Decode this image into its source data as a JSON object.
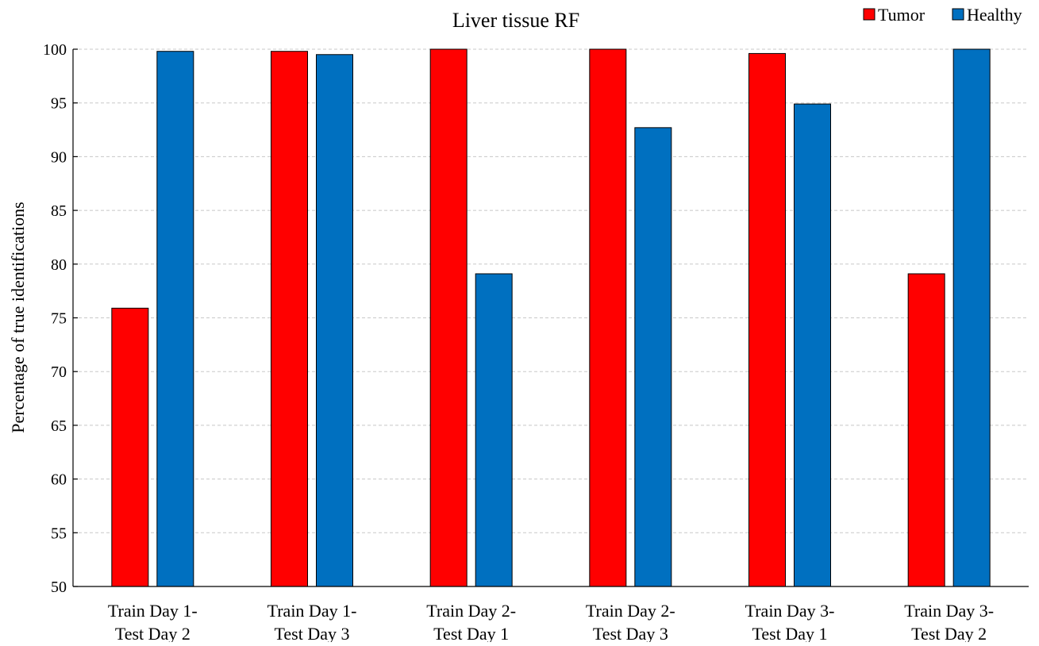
{
  "chart_data": {
    "type": "bar",
    "title": "Liver tissue RF",
    "xlabel": "",
    "ylabel": "Percentage of true identifications",
    "ylim": [
      50,
      100
    ],
    "yticks": [
      50,
      55,
      60,
      65,
      70,
      75,
      80,
      85,
      90,
      95,
      100
    ],
    "grid": true,
    "legend_position": "top-right",
    "categories": [
      [
        "Train Day 1-",
        "Test Day 2"
      ],
      [
        "Train Day 1-",
        "Test Day 3"
      ],
      [
        "Train Day 2-",
        "Test Day 1"
      ],
      [
        "Train Day 2-",
        "Test Day 3"
      ],
      [
        "Train Day 3-",
        "Test Day 1"
      ],
      [
        "Train Day 3-",
        "Test Day 2"
      ]
    ],
    "series": [
      {
        "name": "Tumor",
        "color": "#ff0000",
        "values": [
          75.9,
          99.8,
          100,
          100,
          99.6,
          79.1
        ]
      },
      {
        "name": "Healthy",
        "color": "#0070c0",
        "values": [
          99.8,
          99.5,
          79.1,
          92.7,
          94.9,
          100
        ]
      }
    ]
  }
}
